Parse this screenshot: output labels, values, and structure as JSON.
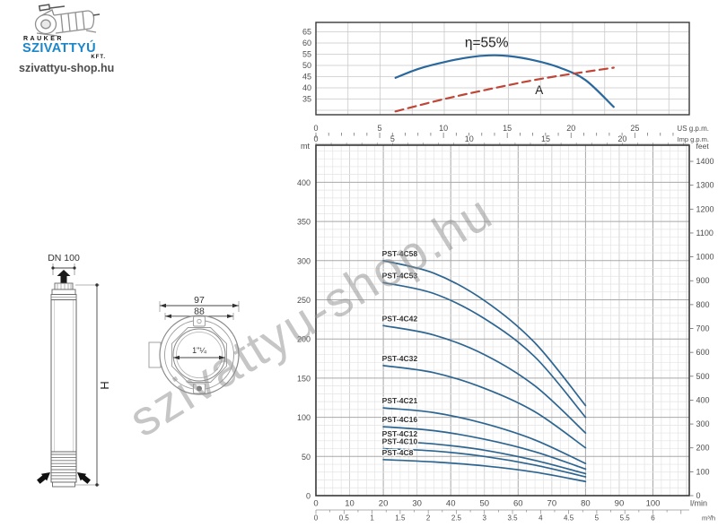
{
  "logo": {
    "brand_top": "RAUKER",
    "brand_main": "SZIVATTYÚ",
    "brand_suffix": "KFT.",
    "website": "szivattyu-shop.hu"
  },
  "watermark": {
    "text": "szivattyu-shop.hu"
  },
  "drawings": {
    "side_view": {
      "dn_label": "DN 100",
      "height_label": "H"
    },
    "top_view": {
      "outer_dim": "97",
      "flange_dim": "88",
      "thread_dim": "1\"¼"
    }
  },
  "colors": {
    "curve_blue": "#2d6590",
    "efficiency_blue": "#2a679c",
    "dashed_red": "#bf4537",
    "grid_minor": "#e3e3e3",
    "grid_mid": "#cfcfcf",
    "grid_major": "#a8a8a8",
    "grid_top": "#c9c9c9",
    "frame": "#383838",
    "text": "#4c4c4c",
    "label": "#333333"
  },
  "chart_data": [
    {
      "id": "efficiency-chart",
      "type": "line",
      "ylim": [
        28,
        69.2
      ],
      "yticks": [
        35,
        40,
        45,
        50,
        55,
        60,
        65
      ],
      "grid": true,
      "series": [
        {
          "name": "efficiency-curve",
          "style": "solid",
          "points": [
            [
              6.2,
              44.5
            ],
            [
              8,
              48.5
            ],
            [
              10,
              51.5
            ],
            [
              12,
              53.7
            ],
            [
              13.5,
              54.5
            ],
            [
              15,
              54.2
            ],
            [
              17,
              52.3
            ],
            [
              19,
              49
            ],
            [
              21,
              43.5
            ],
            [
              23.2,
              31.5
            ]
          ]
        },
        {
          "name": "line-A",
          "style": "dashed",
          "points": [
            [
              6.2,
              29.5
            ],
            [
              10,
              35
            ],
            [
              14,
              40
            ],
            [
              18,
              44.5
            ],
            [
              23.2,
              49
            ]
          ]
        }
      ],
      "annotations": [
        {
          "text": "η=55%",
          "x": 13.3,
          "y": 58.2,
          "size": 15.5
        },
        {
          "text": "A",
          "x": 17.4,
          "y": 37.2,
          "size": 13.5
        }
      ]
    },
    {
      "id": "head-flow-chart",
      "type": "line",
      "x_axes": {
        "us_gpm": {
          "label": "US g.p.m.",
          "ticks": [
            "0",
            "5",
            "10",
            "15",
            "20",
            "25"
          ]
        },
        "imp_gpm": {
          "label": "Imp g.p.m.",
          "ticks": [
            "0",
            "5",
            "10",
            "15",
            "20"
          ]
        },
        "lmin": {
          "label": "l/min",
          "ticks": [
            "0",
            "10",
            "20",
            "30",
            "40",
            "50",
            "60",
            "70",
            "80",
            "90",
            "100"
          ]
        },
        "m3h": {
          "label": "m³/h",
          "ticks": [
            "0",
            "0.5",
            "1",
            "1.5",
            "2",
            "2.5",
            "3",
            "3.5",
            "4",
            "4.5",
            "5",
            "5.5",
            "6"
          ]
        }
      },
      "y_axes": {
        "mt": {
          "label": "mt",
          "ticks": [
            "0",
            "50",
            "100",
            "150",
            "200",
            "250",
            "300",
            "350",
            "400"
          ]
        },
        "feet": {
          "label": "feet",
          "ticks": [
            "0",
            "100",
            "200",
            "300",
            "400",
            "500",
            "600",
            "700",
            "800",
            "900",
            "1000",
            "1100",
            "1200",
            "1300",
            "1400"
          ]
        }
      },
      "series": [
        {
          "name": "PST-4C58",
          "points": [
            [
              20,
              300
            ],
            [
              35,
              284
            ],
            [
              50,
              249
            ],
            [
              65,
              195
            ],
            [
              80,
              115
            ]
          ]
        },
        {
          "name": "PST-4C53",
          "points": [
            [
              20,
              272
            ],
            [
              35,
              258
            ],
            [
              50,
              226
            ],
            [
              65,
              177
            ],
            [
              80,
              100
            ]
          ]
        },
        {
          "name": "PST-4C42",
          "points": [
            [
              20,
              217
            ],
            [
              35,
              205
            ],
            [
              50,
              180
            ],
            [
              65,
              140
            ],
            [
              80,
              80
            ]
          ]
        },
        {
          "name": "PST-4C32",
          "points": [
            [
              20,
              166
            ],
            [
              35,
              157
            ],
            [
              50,
              137
            ],
            [
              65,
              107
            ],
            [
              80,
              61
            ]
          ]
        },
        {
          "name": "PST-4C21",
          "points": [
            [
              20,
              112
            ],
            [
              35,
              106
            ],
            [
              50,
              92
            ],
            [
              65,
              71
            ],
            [
              80,
              41
            ]
          ]
        },
        {
          "name": "PST-4C16",
          "points": [
            [
              20,
              88
            ],
            [
              35,
              83
            ],
            [
              50,
              72
            ],
            [
              65,
              56
            ],
            [
              80,
              34
            ]
          ]
        },
        {
          "name": "PST-4C12",
          "points": [
            [
              20,
              70
            ],
            [
              35,
              66
            ],
            [
              50,
              58
            ],
            [
              65,
              45
            ],
            [
              80,
              28
            ]
          ]
        },
        {
          "name": "PST-4C10",
          "points": [
            [
              20,
              60
            ],
            [
              35,
              57
            ],
            [
              50,
              50
            ],
            [
              65,
              39
            ],
            [
              80,
              24
            ]
          ]
        },
        {
          "name": "PST-4C8",
          "points": [
            [
              20,
              46
            ],
            [
              35,
              43
            ],
            [
              50,
              38
            ],
            [
              65,
              30
            ],
            [
              80,
              18
            ]
          ]
        }
      ]
    }
  ]
}
